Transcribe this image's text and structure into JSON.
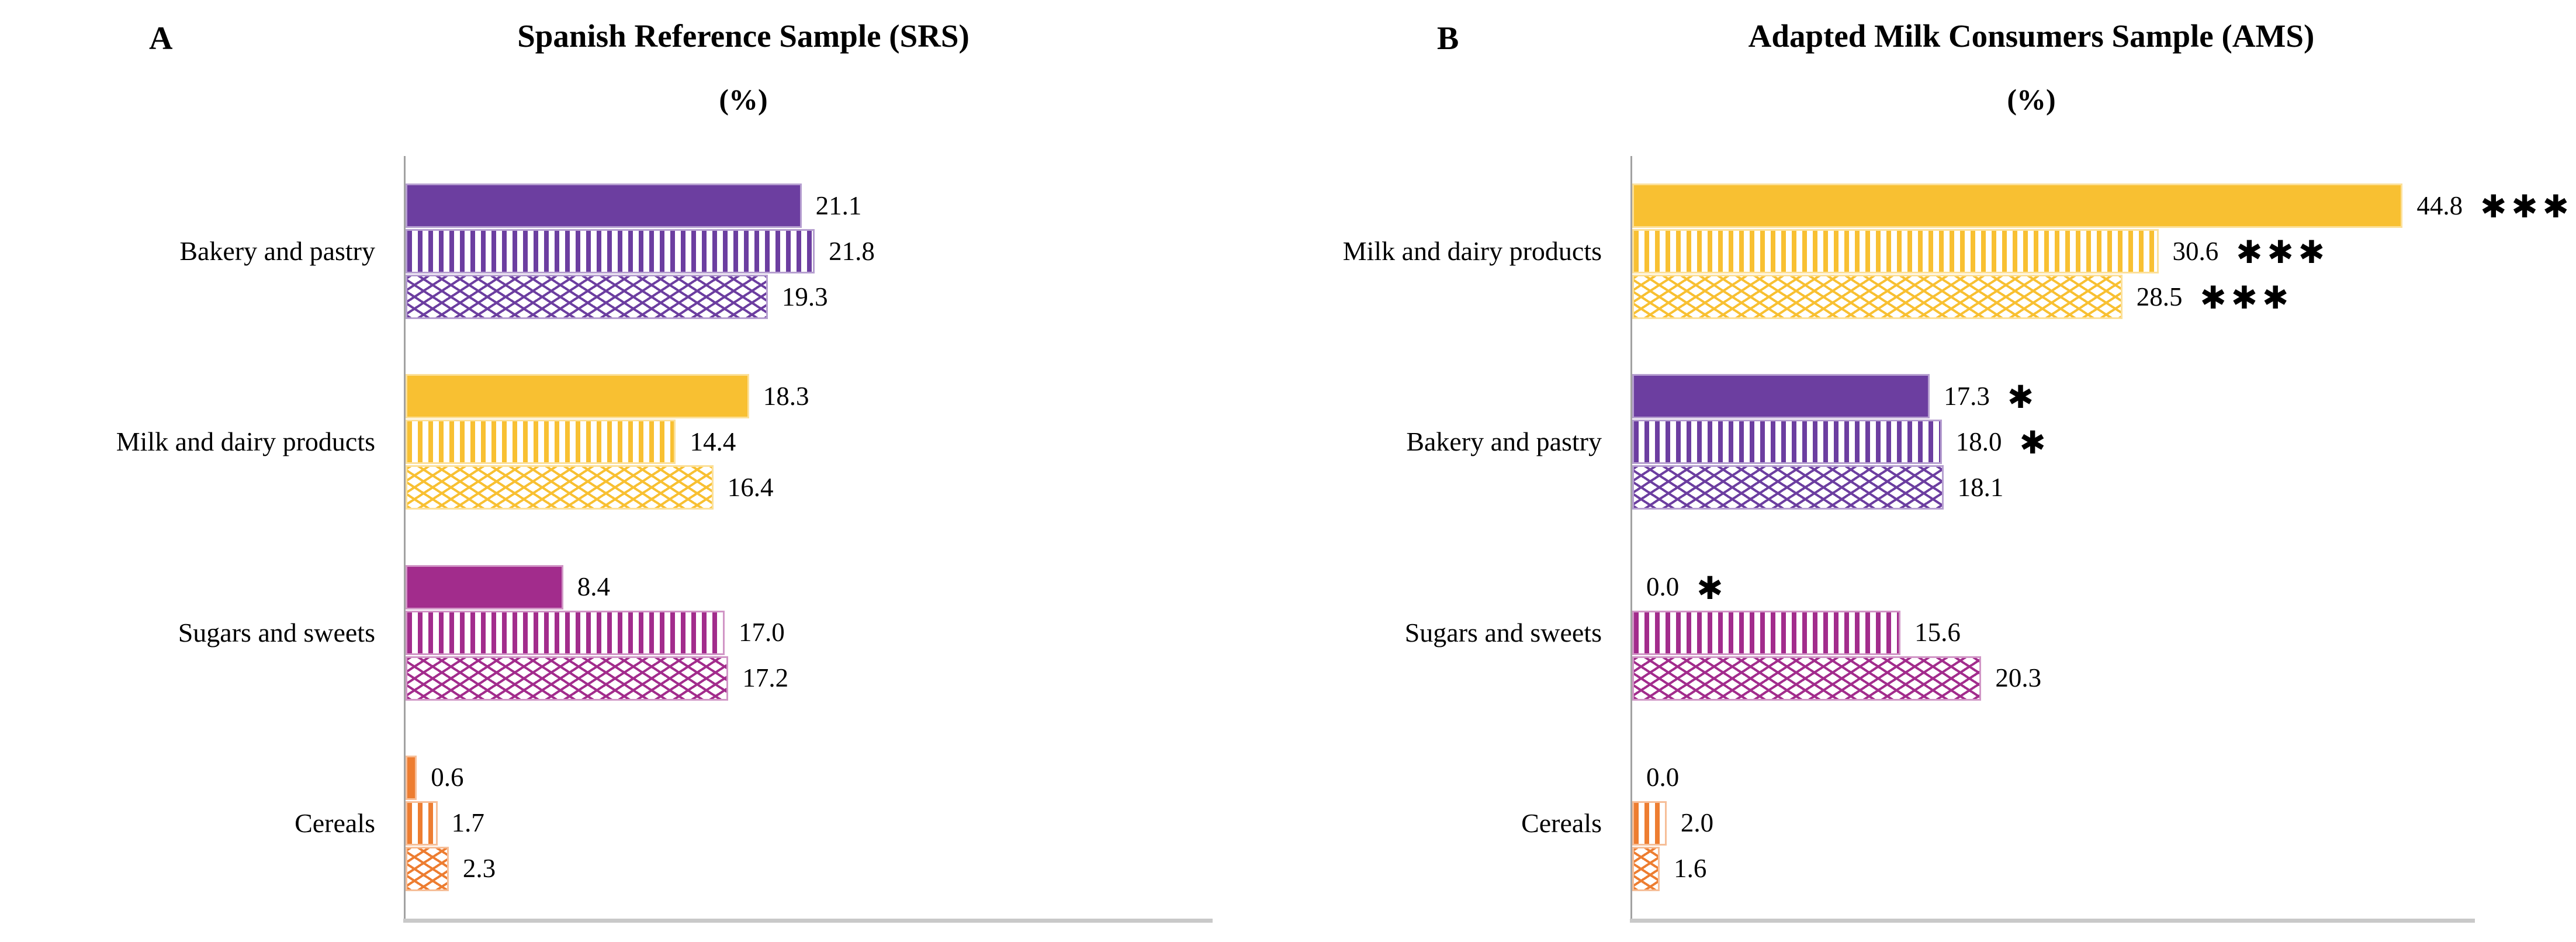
{
  "panels": [
    {
      "letter": "A",
      "title": "Spanish Reference Sample (SRS)",
      "subtitle": "(%)"
    },
    {
      "letter": "B",
      "title": "Adapted Milk Consumers Sample (AMS)",
      "subtitle": "(%)"
    }
  ],
  "category_colors": {
    "Bakery and pastry": "#6C3EA0",
    "Milk and dairy products": "#F8C032",
    "Sugars and sweets": "#A22C8C",
    "Cereals": "#ED7D31"
  },
  "axis_colors": {
    "y_axis": "#a2a2a2",
    "x_baseline": "#c9c9c9"
  },
  "significance_symbol": "asterisk",
  "chart_data": [
    {
      "type": "bar",
      "orientation": "horizontal",
      "panel": "A",
      "title": "Spanish Reference Sample (SRS) (%)",
      "categories": [
        "Bakery and pastry",
        "Milk and dairy products",
        "Sugars and sweets",
        "Cereals"
      ],
      "series": [
        {
          "name": "solid",
          "pattern": "solid",
          "values": [
            21.1,
            18.3,
            8.4,
            0.6
          ],
          "significance": [
            "",
            "",
            "",
            ""
          ]
        },
        {
          "name": "vertical-stripes",
          "pattern": "vertical-stripes",
          "values": [
            21.8,
            14.4,
            17.0,
            1.7
          ],
          "significance": [
            "",
            "",
            "",
            ""
          ]
        },
        {
          "name": "diagonal-crosshatch",
          "pattern": "diagonal-crosshatch",
          "values": [
            19.3,
            16.4,
            17.2,
            2.3
          ],
          "significance": [
            "",
            "",
            "",
            ""
          ]
        }
      ],
      "xlim": [
        0,
        43
      ],
      "value_label_format": "0.0",
      "grid": false,
      "legend": false
    },
    {
      "type": "bar",
      "orientation": "horizontal",
      "panel": "B",
      "title": "Adapted Milk Consumers Sample (AMS) (%)",
      "categories": [
        "Milk and dairy products",
        "Bakery and pastry",
        "Sugars and sweets",
        "Cereals"
      ],
      "series": [
        {
          "name": "solid",
          "pattern": "solid",
          "values": [
            44.8,
            17.3,
            0.0,
            0.0
          ],
          "significance": [
            "***",
            "*",
            "*",
            ""
          ]
        },
        {
          "name": "vertical-stripes",
          "pattern": "vertical-stripes",
          "values": [
            30.6,
            18.0,
            15.6,
            2.0
          ],
          "significance": [
            "***",
            "*",
            "",
            ""
          ]
        },
        {
          "name": "diagonal-crosshatch",
          "pattern": "diagonal-crosshatch",
          "values": [
            28.5,
            18.1,
            20.3,
            1.6
          ],
          "significance": [
            "***",
            "",
            "",
            ""
          ]
        }
      ],
      "xlim": [
        0,
        49
      ],
      "value_label_format": "0.0",
      "grid": false,
      "legend": false
    }
  ]
}
